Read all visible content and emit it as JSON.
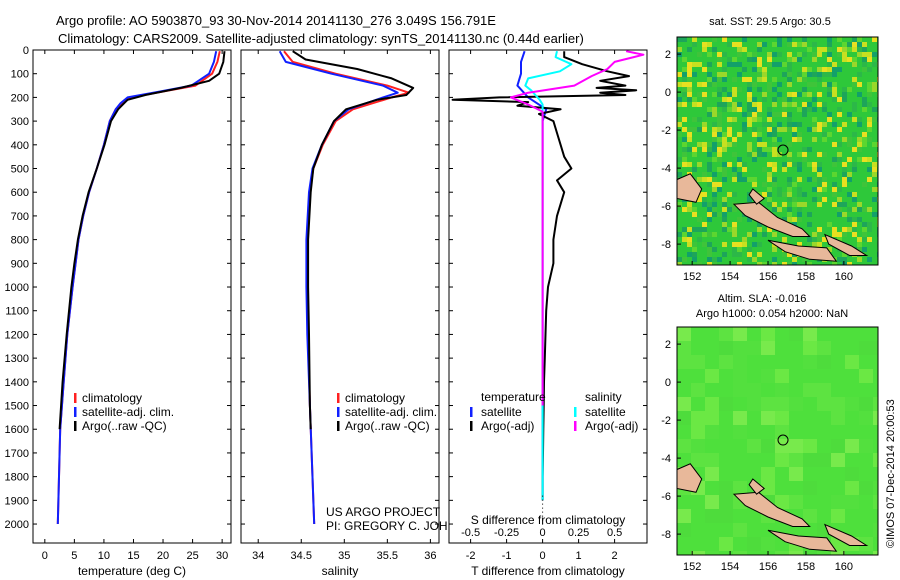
{
  "title": {
    "line1": "Argo profile: AO 5903870_93 30-Nov-2014 20141130_276 3.049S 156.791E",
    "line2": "Climatology: CARS2009. Satellite-adjusted climatology: synTS_20141130.nc (0.44d earlier)"
  },
  "credit": {
    "project": "US ARGO PROJECT",
    "pi": "PI: GREGORY C. JOHNSON"
  },
  "side_stamp": "©IMOS 07-Dec-2014 20:00:53",
  "maps": [
    {
      "title": "sat. SST: 29.5 Argo: 30.5",
      "xticks": [
        "152",
        "154",
        "156",
        "158",
        "160"
      ],
      "yticks": [
        "2",
        "0",
        "-2",
        "-4",
        "-6",
        "-8"
      ]
    },
    {
      "title1": "Altim. SLA: -0.016",
      "title2": "Argo h1000: 0.054 h2000: NaN",
      "xticks": [
        "152",
        "154",
        "156",
        "158",
        "160"
      ],
      "yticks": [
        "2",
        "0",
        "-2",
        "-4",
        "-6",
        "-8"
      ]
    }
  ],
  "colors": {
    "climatology": "#ff2020",
    "satellite": "#1020ff",
    "argo": "#000000",
    "sal_satellite": "#00ffff",
    "sal_argo": "#ff00ff",
    "map1_base": "#2ec83a",
    "map2_base": "#4ee03c",
    "land": "#e8b89a"
  },
  "chart_data": [
    {
      "type": "line",
      "xlabel": "temperature (deg C)",
      "ylabel": "",
      "xlim": [
        -2,
        31.5
      ],
      "ylim": [
        0,
        2080
      ],
      "xticks": [
        0,
        5,
        10,
        15,
        20,
        25,
        30
      ],
      "yticks": [
        0,
        100,
        200,
        300,
        400,
        500,
        600,
        700,
        800,
        900,
        1000,
        1100,
        1200,
        1300,
        1400,
        1500,
        1600,
        1700,
        1800,
        1900,
        2000
      ],
      "legend": [
        {
          "label": "climatology",
          "color": "#ff2020"
        },
        {
          "label": "satellite-adj. clim.",
          "color": "#1020ff"
        },
        {
          "label": "Argo(..raw -QC)",
          "color": "#000000"
        }
      ],
      "series": [
        {
          "name": "climatology",
          "color": "#ff2020",
          "depth": [
            5,
            50,
            100,
            150,
            175,
            200,
            225,
            250,
            300,
            400,
            500,
            600,
            700,
            800,
            900,
            1000,
            1200,
            1400,
            1600,
            2000
          ],
          "values": [
            29.6,
            29.2,
            28.3,
            25.5,
            20.0,
            14.5,
            13.0,
            12.0,
            11.0,
            10.0,
            8.8,
            7.5,
            6.5,
            5.7,
            5.2,
            4.7,
            3.8,
            3.2,
            2.6,
            2.2
          ]
        },
        {
          "name": "satellite-adj. clim.",
          "color": "#1020ff",
          "depth": [
            5,
            50,
            100,
            150,
            175,
            200,
            225,
            250,
            300,
            400,
            500,
            600,
            700,
            800,
            900,
            1000,
            1200,
            1400,
            1600,
            2000
          ],
          "values": [
            29.0,
            28.6,
            27.8,
            24.8,
            19.5,
            14.0,
            12.8,
            12.0,
            11.0,
            10.0,
            8.8,
            7.5,
            6.5,
            5.7,
            5.2,
            4.7,
            3.8,
            3.2,
            2.6,
            2.2
          ]
        },
        {
          "name": "Argo(..raw -QC)",
          "color": "#000000",
          "depth": [
            5,
            50,
            100,
            130,
            160,
            190,
            210,
            230,
            250,
            300,
            400,
            500,
            600,
            700,
            800,
            900,
            1000,
            1200,
            1400,
            1600
          ],
          "values": [
            30.4,
            30.2,
            29.5,
            27.8,
            23.0,
            17.0,
            14.0,
            13.2,
            12.4,
            11.2,
            10.1,
            8.8,
            7.4,
            6.4,
            5.6,
            5.0,
            4.5,
            3.7,
            3.0,
            2.5
          ]
        }
      ]
    },
    {
      "type": "line",
      "xlabel": "salinity",
      "xlim": [
        33.8,
        36.1
      ],
      "ylim": [
        0,
        2080
      ],
      "xticks": [
        34,
        34.5,
        35,
        35.5,
        36
      ],
      "legend": [
        {
          "label": "climatology",
          "color": "#ff2020"
        },
        {
          "label": "satellite-adj. clim.",
          "color": "#1020ff"
        },
        {
          "label": "Argo(..raw -QC)",
          "color": "#000000"
        }
      ],
      "series": [
        {
          "name": "climatology",
          "color": "#ff2020",
          "depth": [
            5,
            50,
            100,
            150,
            180,
            200,
            250,
            300,
            400,
            500,
            600,
            800,
            1000,
            1200,
            1500,
            2000
          ],
          "values": [
            34.3,
            34.4,
            34.9,
            35.5,
            35.75,
            35.55,
            35.1,
            34.9,
            34.75,
            34.64,
            34.6,
            34.57,
            34.57,
            34.58,
            34.6,
            34.65
          ]
        },
        {
          "name": "satellite-adj. clim.",
          "color": "#1020ff",
          "depth": [
            5,
            50,
            100,
            150,
            180,
            200,
            250,
            300,
            400,
            500,
            600,
            800,
            1000,
            1200,
            1500,
            2000
          ],
          "values": [
            34.25,
            34.32,
            34.85,
            35.45,
            35.62,
            35.45,
            35.05,
            34.88,
            34.74,
            34.63,
            34.59,
            34.56,
            34.56,
            34.57,
            34.6,
            34.65
          ]
        },
        {
          "name": "Argo(..raw -QC)",
          "color": "#000000",
          "depth": [
            5,
            40,
            80,
            120,
            160,
            190,
            210,
            250,
            300,
            400,
            500,
            600,
            800,
            1000,
            1200,
            1500,
            1600
          ],
          "values": [
            34.4,
            34.55,
            35.15,
            35.55,
            35.8,
            35.72,
            35.38,
            35.02,
            34.88,
            34.74,
            34.64,
            34.61,
            34.58,
            34.58,
            34.59,
            34.6,
            34.61
          ]
        }
      ]
    },
    {
      "type": "line",
      "xlabel": "T difference from climatology",
      "xlabel2": "S difference from climatology",
      "xlim": [
        -2.6,
        2.9
      ],
      "ylim": [
        0,
        2080
      ],
      "xticks": [
        -2,
        -1,
        0,
        1,
        2
      ],
      "xticks2": [
        -0.5,
        -0.25,
        0,
        0.25,
        0.5
      ],
      "legend": [
        {
          "header": "temperature"
        },
        {
          "label": "satellite",
          "color": "#1020ff"
        },
        {
          "label": "Argo(-adj)",
          "color": "#000000"
        },
        {
          "header": "salinity"
        },
        {
          "label": "satellite",
          "color": "#00ffff"
        },
        {
          "label": "Argo(-adj)",
          "color": "#ff00ff"
        }
      ],
      "series": [
        {
          "name": "temperature satellite",
          "color": "#1020ff",
          "depth": [
            5,
            50,
            100,
            150,
            200,
            250,
            300,
            400,
            600,
            1000,
            1500,
            1900
          ],
          "values": [
            -0.5,
            -0.6,
            -0.6,
            -0.7,
            -0.4,
            0.1,
            0.0,
            0.0,
            0.0,
            0.0,
            0.0,
            0.0
          ]
        },
        {
          "name": "temperature Argo(-adj)",
          "color": "#000000",
          "depth": [
            5,
            30,
            60,
            90,
            110,
            130,
            150,
            160,
            170,
            180,
            190,
            200,
            210,
            220,
            235,
            250,
            270,
            300,
            350,
            400,
            450,
            500,
            550,
            600,
            700,
            800,
            900,
            1000,
            1100,
            1200,
            1300,
            1400,
            1500,
            1600,
            1700,
            1800,
            1900
          ],
          "values": [
            0.6,
            0.6,
            1.1,
            1.8,
            2.4,
            1.6,
            2.3,
            1.5,
            2.6,
            1.6,
            2.3,
            -1.2,
            -2.5,
            -0.4,
            -0.7,
            0.5,
            -0.1,
            0.3,
            0.4,
            0.5,
            0.6,
            0.8,
            0.4,
            0.6,
            0.4,
            0.3,
            0.3,
            0.15,
            0.1,
            0.08,
            0.06,
            0.04,
            0.03,
            0.02,
            0.01,
            0.0,
            0.0
          ]
        },
        {
          "name": "salinity satellite",
          "color": "#00ffff",
          "depth": [
            5,
            30,
            60,
            90,
            120,
            150,
            170,
            190,
            210,
            230,
            250,
            300,
            400,
            600,
            1000,
            1500,
            1900
          ],
          "values": [
            0.1,
            0.09,
            0.2,
            0.12,
            -0.1,
            -0.12,
            -0.08,
            -0.05,
            -0.02,
            0.0,
            0.0,
            0.0,
            0.0,
            0.0,
            0.0,
            0.0,
            0.0
          ]
        },
        {
          "name": "salinity Argo(-adj)",
          "color": "#ff00ff",
          "depth": [
            5,
            20,
            50,
            80,
            110,
            150,
            180,
            200,
            230,
            260,
            300,
            400,
            600,
            1000,
            1500
          ],
          "values": [
            0.58,
            0.7,
            0.5,
            0.45,
            0.34,
            0.22,
            -0.1,
            -0.22,
            -0.1,
            0.0,
            0.0,
            0.0,
            0.0,
            0.0,
            0.0
          ]
        }
      ]
    }
  ]
}
